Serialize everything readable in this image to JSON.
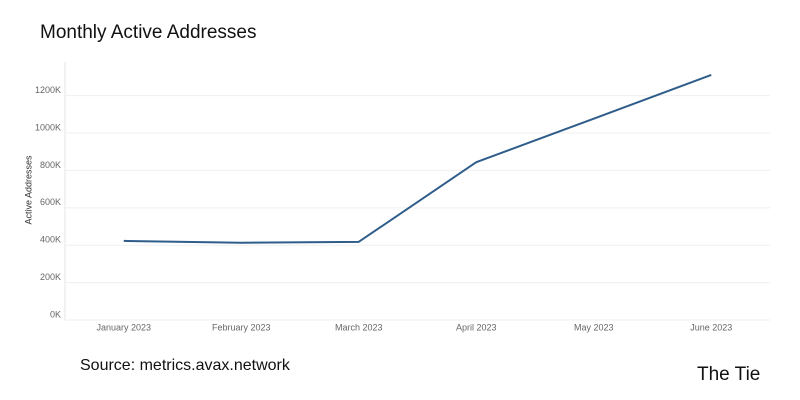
{
  "chart_data": {
    "type": "line",
    "title": "Monthly Active Addresses",
    "y_label": "Active Addresses",
    "source": "Source: metrics.avax.network",
    "brand": "The Tie",
    "categories": [
      "January 2023",
      "February 2023",
      "March 2023",
      "April 2023",
      "May 2023",
      "June 2023"
    ],
    "series": [
      {
        "name": "Active Addresses",
        "color": "#2f5d8a",
        "values": [
          423000,
          413000,
          418000,
          844000,
          1077000,
          1311000
        ]
      }
    ],
    "ylim": [
      0,
      1380000
    ],
    "yticks": [
      {
        "value": 0,
        "label": "0K"
      },
      {
        "value": 200000,
        "label": "200K"
      },
      {
        "value": 400000,
        "label": "400K"
      },
      {
        "value": 600000,
        "label": "600K"
      },
      {
        "value": 800000,
        "label": "800K"
      },
      {
        "value": 1000000,
        "label": "1000K"
      },
      {
        "value": 1200000,
        "label": "1200K"
      }
    ],
    "grid": true
  }
}
